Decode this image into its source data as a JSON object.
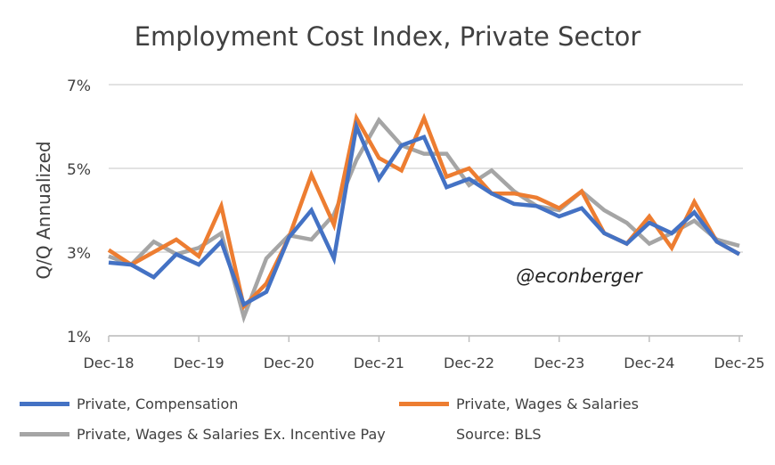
{
  "chart_data": {
    "type": "line",
    "title": "Employment Cost Index, Private Sector",
    "ylabel": "Q/Q Annualized",
    "xlabel": "",
    "ylim": [
      1,
      7
    ],
    "yticks": [
      "1%",
      "3%",
      "5%",
      "7%"
    ],
    "ytick_values": [
      1,
      3,
      5,
      7
    ],
    "xtick_labels": [
      "Dec-18",
      "Dec-19",
      "Dec-20",
      "Dec-21",
      "Dec-22",
      "Dec-23",
      "Dec-24",
      "Dec-25"
    ],
    "x": [
      "Dec-18",
      "Mar-19",
      "Jun-19",
      "Sep-19",
      "Dec-19",
      "Mar-20",
      "Jun-20",
      "Sep-20",
      "Dec-20",
      "Mar-21",
      "Jun-21",
      "Sep-21",
      "Dec-21",
      "Mar-22",
      "Jun-22",
      "Sep-22",
      "Dec-22",
      "Mar-23",
      "Jun-23",
      "Sep-23",
      "Dec-23",
      "Mar-24",
      "Jun-24",
      "Sep-24",
      "Dec-24",
      "Mar-25",
      "Jun-25",
      "Sep-25",
      "Dec-25"
    ],
    "grid": true,
    "legend_position": "bottom",
    "series": [
      {
        "name": "Private, Compensation",
        "color": "#4472C4",
        "values": [
          2.75,
          2.7,
          2.4,
          2.95,
          2.7,
          3.25,
          1.75,
          2.05,
          3.35,
          4.0,
          2.85,
          6.0,
          4.75,
          5.55,
          5.75,
          4.55,
          4.75,
          4.4,
          4.15,
          4.1,
          3.85,
          4.05,
          3.45,
          3.2,
          3.7,
          3.45,
          3.95,
          3.25,
          2.95
        ]
      },
      {
        "name": "Private, Wages & Salaries",
        "color": "#ED7D31",
        "values": [
          3.05,
          2.7,
          3.0,
          3.3,
          2.9,
          4.1,
          1.7,
          2.25,
          3.35,
          4.85,
          3.65,
          6.2,
          5.25,
          4.95,
          6.2,
          4.8,
          5.0,
          4.4,
          4.4,
          4.3,
          4.05,
          4.45,
          3.45,
          3.2,
          3.85,
          3.1,
          4.2,
          3.25,
          2.95
        ]
      },
      {
        "name": "Private, Wages & Salaries Ex. Incentive Pay",
        "color": "#A5A5A5",
        "values": [
          2.9,
          2.7,
          3.25,
          2.95,
          3.1,
          3.45,
          1.45,
          2.85,
          3.4,
          3.3,
          3.9,
          5.2,
          6.15,
          5.55,
          5.35,
          5.35,
          4.6,
          4.95,
          4.45,
          4.1,
          4.0,
          4.45,
          4.0,
          3.7,
          3.2,
          3.45,
          3.75,
          3.3,
          3.15
        ]
      }
    ],
    "annotations": [
      "@econberger",
      "Source: BLS"
    ]
  }
}
